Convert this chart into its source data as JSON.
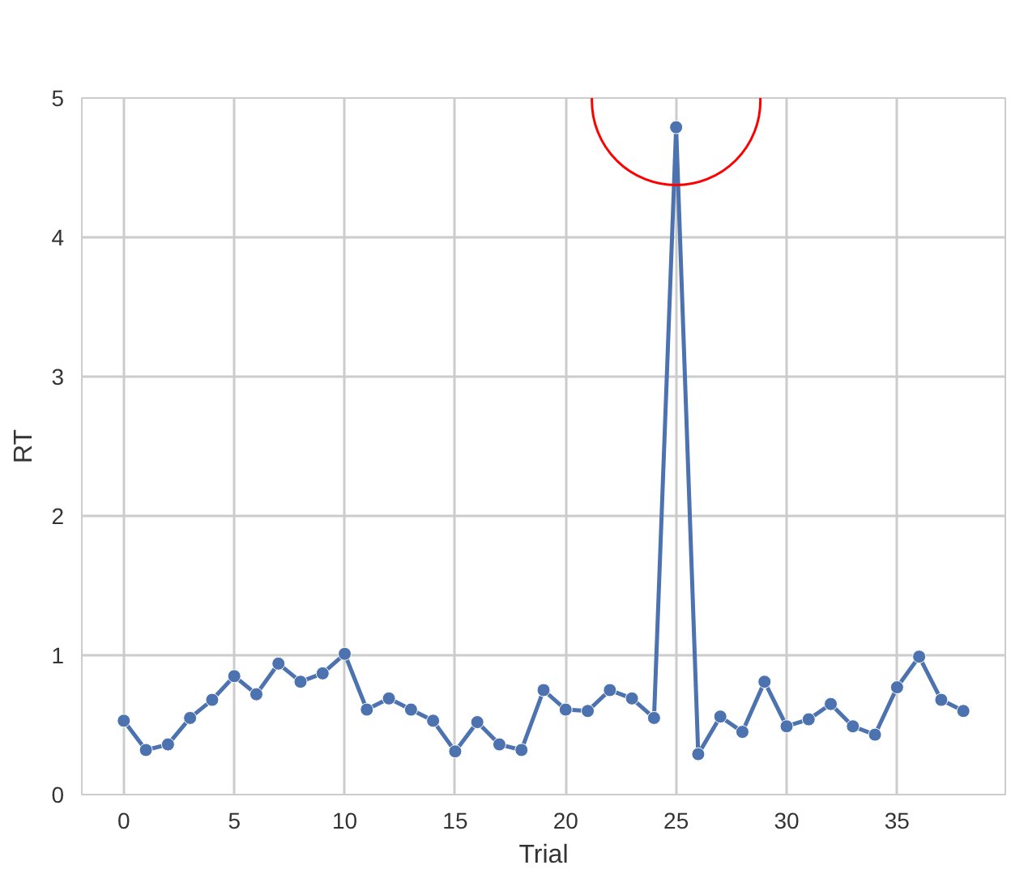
{
  "chart_data": {
    "type": "line",
    "xlabel": "Trial",
    "ylabel": "RT",
    "x": [
      0,
      1,
      2,
      3,
      4,
      5,
      6,
      7,
      8,
      9,
      10,
      11,
      12,
      13,
      14,
      15,
      16,
      17,
      18,
      19,
      20,
      21,
      22,
      23,
      24,
      25,
      26,
      27,
      28,
      29,
      30,
      31,
      32,
      33,
      34,
      35,
      36,
      37,
      38
    ],
    "series": [
      {
        "color": "#4c72b0",
        "values": [
          0.53,
          0.32,
          0.36,
          0.55,
          0.68,
          0.85,
          0.72,
          0.94,
          0.81,
          0.87,
          1.01,
          0.61,
          0.69,
          0.61,
          0.53,
          0.31,
          0.52,
          0.36,
          0.32,
          0.75,
          0.61,
          0.6,
          0.75,
          0.69,
          0.55,
          4.79,
          0.29,
          0.56,
          0.45,
          0.81,
          0.49,
          0.54,
          0.65,
          0.49,
          0.43,
          0.77,
          0.99,
          0.68,
          0.6
        ]
      }
    ],
    "xlim": [
      -1.9,
      39.9
    ],
    "ylim": [
      0,
      5
    ],
    "xticks": [
      0,
      5,
      10,
      15,
      20,
      25,
      30,
      35
    ],
    "yticks": [
      0,
      1,
      2,
      3,
      4,
      5
    ],
    "grid": true,
    "marker": "circle",
    "line_style": "solid"
  }
}
